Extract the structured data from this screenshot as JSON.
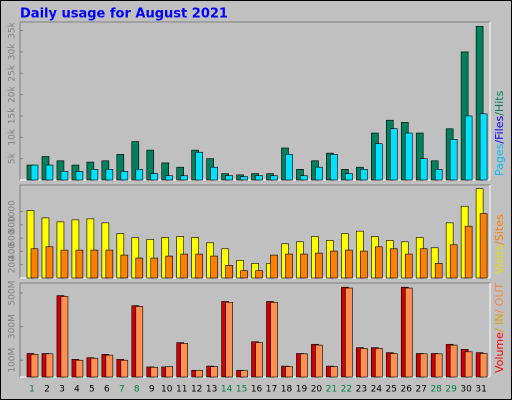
{
  "chart_data": [
    {
      "type": "bar",
      "title": "Daily usage for August 2021",
      "categories": [
        "1",
        "2",
        "3",
        "4",
        "5",
        "6",
        "7",
        "8",
        "9",
        "10",
        "11",
        "12",
        "13",
        "14",
        "15",
        "16",
        "17",
        "18",
        "19",
        "20",
        "21",
        "22",
        "23",
        "24",
        "25",
        "26",
        "27",
        "28",
        "29",
        "30",
        "31"
      ],
      "weekend": [
        0,
        6,
        7,
        13,
        14,
        20,
        21,
        27,
        28
      ],
      "weekend_color": "#008040",
      "label_parts": [
        {
          "text": "Pages",
          "color": "#00c0ff"
        },
        {
          "text": "/Files",
          "color": "#0000ff"
        },
        {
          "text": "/Hits",
          "color": "#00805c"
        }
      ],
      "series": [
        {
          "color": "#00805c",
          "values": [
            3500,
            5500,
            4500,
            3500,
            4200,
            4500,
            6000,
            9000,
            7000,
            4000,
            3000,
            7000,
            5000,
            1500,
            1200,
            1500,
            1500,
            7500,
            2500,
            4500,
            6300,
            2500,
            3000,
            11000,
            14000,
            13500,
            11000,
            4500,
            12000,
            30000,
            36000
          ]
        },
        {
          "color": "#00e0ff",
          "values": [
            3500,
            3500,
            2000,
            2000,
            2500,
            2500,
            2000,
            2500,
            1500,
            1000,
            1000,
            6500,
            3000,
            1000,
            800,
            1000,
            1000,
            6000,
            1000,
            3000,
            6000,
            1500,
            2500,
            8500,
            12000,
            11000,
            5000,
            2500,
            9500,
            15000,
            15500
          ]
        }
      ],
      "ylim": [
        0,
        37000
      ],
      "yticks": [
        {
          "value": 5000,
          "label": "5k"
        },
        {
          "value": 10000,
          "label": "10k"
        },
        {
          "value": 15000,
          "label": "15k"
        },
        {
          "value": 20000,
          "label": "20k"
        },
        {
          "value": 25000,
          "label": "25k"
        },
        {
          "value": 30000,
          "label": "30k"
        },
        {
          "value": 35000,
          "label": "35k"
        }
      ]
    },
    {
      "type": "bar",
      "label_parts": [
        {
          "text": "Visits",
          "color": "#e0e000"
        },
        {
          "text": "/Sites",
          "color": "#ff8000"
        }
      ],
      "series": [
        {
          "color": "#ffff00",
          "values": [
            1015,
            905,
            845,
            875,
            890,
            830,
            670,
            610,
            580,
            610,
            625,
            610,
            530,
            440,
            265,
            220,
            220,
            515,
            545,
            625,
            565,
            670,
            705,
            625,
            565,
            545,
            610,
            455,
            830,
            1080,
            1345
          ]
        },
        {
          "color": "#ff8000",
          "values": [
            440,
            470,
            420,
            420,
            420,
            420,
            345,
            300,
            300,
            330,
            360,
            360,
            330,
            190,
            110,
            110,
            345,
            360,
            360,
            375,
            405,
            420,
            405,
            470,
            440,
            360,
            440,
            220,
            500,
            780,
            970
          ]
        }
      ],
      "ylim": [
        0,
        1400
      ],
      "yticks": [
        200,
        400,
        600,
        800,
        1000
      ]
    },
    {
      "type": "bar",
      "label_parts": [
        {
          "text": "Volume",
          "color": "#ff0000"
        },
        {
          "text": "/ IN",
          "color": "#e0a000"
        },
        {
          "text": "/ OUT",
          "color": "#ff8040"
        }
      ],
      "series": [
        {
          "color": "#d00000",
          "values": [
            140,
            140,
            485,
            105,
            115,
            135,
            105,
            425,
            60,
            60,
            205,
            40,
            65,
            450,
            40,
            210,
            450,
            65,
            140,
            195,
            65,
            535,
            175,
            175,
            145,
            535,
            140,
            140,
            195,
            165,
            145
          ]
        },
        {
          "color": "#ff9050",
          "values": [
            135,
            138,
            480,
            100,
            112,
            130,
            100,
            420,
            58,
            62,
            200,
            40,
            62,
            445,
            38,
            205,
            445,
            62,
            138,
            190,
            62,
            530,
            170,
            170,
            140,
            530,
            138,
            138,
            190,
            150,
            140
          ]
        }
      ],
      "ylim": [
        0,
        560
      ],
      "yticks": [
        {
          "value": 100,
          "label": "100M"
        },
        {
          "value": 300,
          "label": "300M"
        },
        {
          "value": 500,
          "label": "500M"
        }
      ]
    }
  ]
}
